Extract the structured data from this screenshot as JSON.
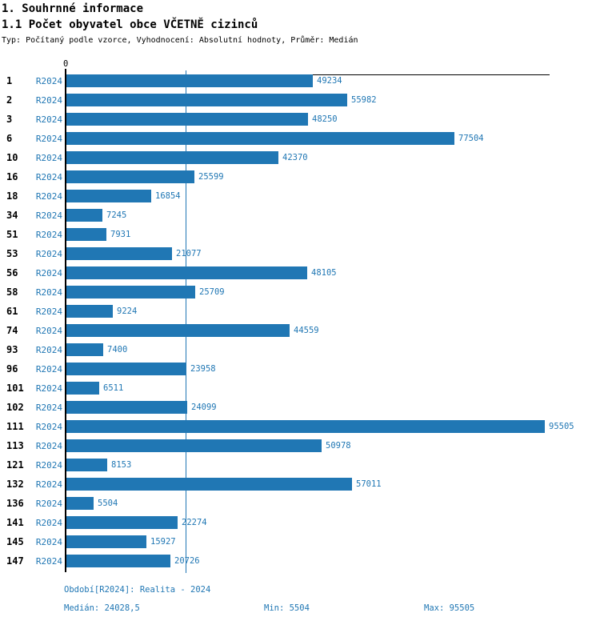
{
  "header": {
    "title": "1. Souhrnné informace",
    "subtitle": "1.1 Počet obyvatel obce VČETNĚ cizinců",
    "meta": "Typ: Počítaný podle vzorce, Vyhodnocení: Absolutní hodnoty, Průměr: Medián"
  },
  "chart_data": {
    "type": "bar",
    "orientation": "horizontal",
    "series_label": "R2024",
    "categories": [
      "1",
      "2",
      "3",
      "6",
      "10",
      "16",
      "18",
      "34",
      "51",
      "53",
      "56",
      "58",
      "61",
      "74",
      "93",
      "96",
      "101",
      "102",
      "111",
      "113",
      "121",
      "132",
      "136",
      "141",
      "145",
      "147"
    ],
    "values": [
      49234,
      55982,
      48250,
      77504,
      42370,
      25599,
      16854,
      7245,
      7931,
      21077,
      48105,
      25709,
      9224,
      44559,
      7400,
      23958,
      6511,
      24099,
      95505,
      50978,
      8153,
      57011,
      5504,
      22274,
      15927,
      20726
    ],
    "xlim": [
      0,
      95505
    ],
    "axis_zero_label": "0",
    "median_line_value": 24028.5,
    "grid": "median-line-only",
    "legend": "none",
    "bar_color": "#2077b4",
    "label_color": "#2077b4",
    "axis_color": "#000000"
  },
  "footer": {
    "period": "Období[R2024]: Realita - 2024",
    "median": "Medián: 24028,5",
    "min": "Min: 5504",
    "max": "Max: 95505"
  }
}
